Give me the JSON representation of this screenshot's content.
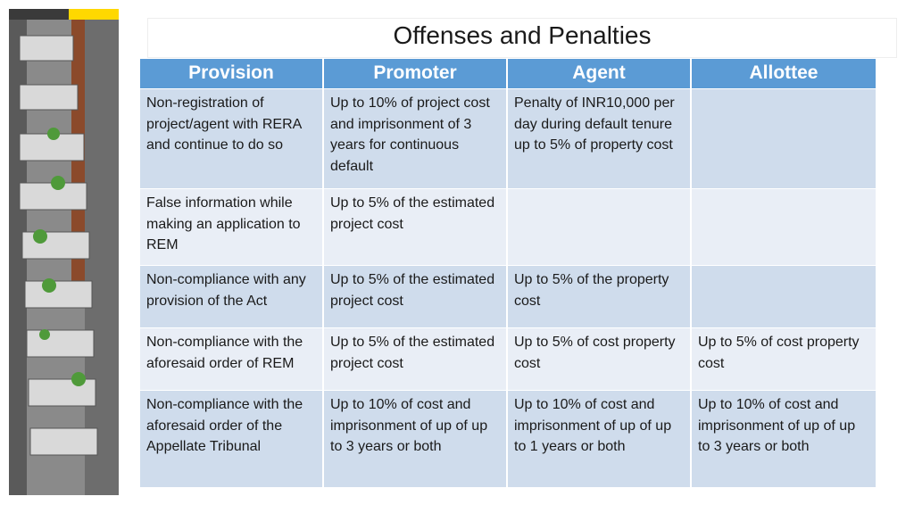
{
  "header": {
    "title": "Offenses and Penalties"
  },
  "table": {
    "columns": [
      "Provision",
      "Promoter",
      "Agent",
      "Allottee"
    ],
    "rows": [
      [
        "Non-registration of project/agent with RERA and continue to do so",
        "Up to 10% of project cost and imprisonment of 3 years for continuous default",
        "Penalty of INR10,000 per day during default tenure up to 5% of property cost",
        null
      ],
      [
        "False information while making an application to REM",
        "Up to 5% of the estimated project cost",
        null,
        null
      ],
      [
        "Non-compliance with any provision of the Act",
        "Up to 5% of the estimated project cost",
        "Up to 5% of the property cost",
        null
      ],
      [
        "Non-compliance with the aforesaid order of REM",
        "Up to 5% of the estimated project cost",
        "Up to 5% of cost property cost",
        "Up to 5% of cost property cost"
      ],
      [
        "Non-compliance with the aforesaid order of the Appellate Tribunal",
        "Up to 10% of cost and imprisonment of up of up to 3 years or both",
        "Up to 10% of cost and imprisonment of up of up to 1 years or both",
        "Up to 10% of cost and imprisonment of up of up to 3 years or both"
      ]
    ]
  }
}
